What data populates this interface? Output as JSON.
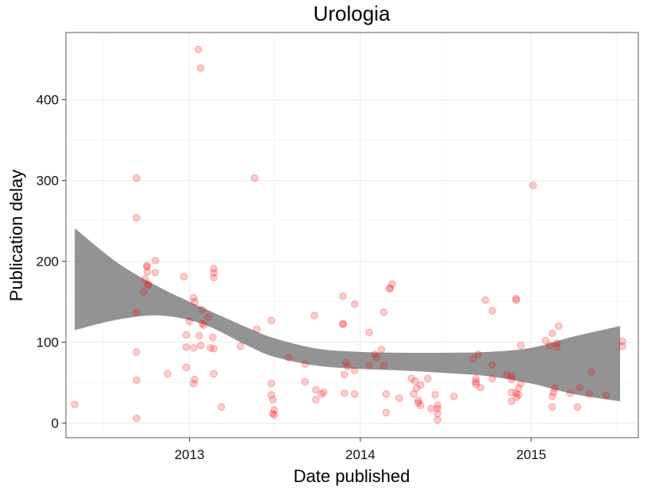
{
  "chart_data": {
    "type": "scatter",
    "title": "Urologia",
    "xlabel": "Date published",
    "ylabel": "Publication delay",
    "x_ticks": [
      "2013",
      "2014",
      "2015"
    ],
    "y_ticks": [
      "0",
      "100",
      "200",
      "300",
      "400"
    ],
    "xlim": [
      "2012-04-12",
      "2015-08-18"
    ],
    "ylim": [
      -18,
      483
    ],
    "grid": true,
    "colors": {
      "point": "#ff0000",
      "band": "#808080",
      "grid": "#ebebeb",
      "frame": "#7f7f7f"
    },
    "points": [
      {
        "x": "2012-05-01",
        "y": 23
      },
      {
        "x": "2012-09-10",
        "y": 303
      },
      {
        "x": "2012-09-10",
        "y": 254
      },
      {
        "x": "2012-09-10",
        "y": 137
      },
      {
        "x": "2012-09-10",
        "y": 88
      },
      {
        "x": "2012-09-10",
        "y": 53
      },
      {
        "x": "2012-09-10",
        "y": 6
      },
      {
        "x": "2012-09-25",
        "y": 162
      },
      {
        "x": "2012-09-28",
        "y": 178
      },
      {
        "x": "2012-10-02",
        "y": 195
      },
      {
        "x": "2012-10-02",
        "y": 193
      },
      {
        "x": "2012-10-03",
        "y": 187
      },
      {
        "x": "2012-10-05",
        "y": 172
      },
      {
        "x": "2012-10-05",
        "y": 170
      },
      {
        "x": "2012-10-20",
        "y": 201
      },
      {
        "x": "2012-10-20",
        "y": 186
      },
      {
        "x": "2012-11-15",
        "y": 61
      },
      {
        "x": "2012-12-20",
        "y": 181
      },
      {
        "x": "2012-12-25",
        "y": 109
      },
      {
        "x": "2012-12-25",
        "y": 94
      },
      {
        "x": "2012-12-25",
        "y": 69
      },
      {
        "x": "2013-01-01",
        "y": 126
      },
      {
        "x": "2013-01-10",
        "y": 155
      },
      {
        "x": "2013-01-12",
        "y": 150
      },
      {
        "x": "2013-01-10",
        "y": 93
      },
      {
        "x": "2013-01-10",
        "y": 49
      },
      {
        "x": "2013-01-12",
        "y": 54
      },
      {
        "x": "2013-01-20",
        "y": 462
      },
      {
        "x": "2013-01-25",
        "y": 439
      },
      {
        "x": "2013-01-22",
        "y": 108
      },
      {
        "x": "2013-01-25",
        "y": 96
      },
      {
        "x": "2013-01-28",
        "y": 123
      },
      {
        "x": "2013-01-28",
        "y": 140
      },
      {
        "x": "2013-02-01",
        "y": 121
      },
      {
        "x": "2013-02-10",
        "y": 131
      },
      {
        "x": "2013-02-15",
        "y": 93
      },
      {
        "x": "2013-02-22",
        "y": 191
      },
      {
        "x": "2013-02-22",
        "y": 186
      },
      {
        "x": "2013-02-22",
        "y": 180
      },
      {
        "x": "2013-02-20",
        "y": 106
      },
      {
        "x": "2013-02-22",
        "y": 92
      },
      {
        "x": "2013-02-22",
        "y": 61
      },
      {
        "x": "2013-03-10",
        "y": 20
      },
      {
        "x": "2013-04-20",
        "y": 95
      },
      {
        "x": "2013-05-20",
        "y": 303
      },
      {
        "x": "2013-05-25",
        "y": 116
      },
      {
        "x": "2013-06-25",
        "y": 127
      },
      {
        "x": "2013-06-25",
        "y": 49
      },
      {
        "x": "2013-06-25",
        "y": 35
      },
      {
        "x": "2013-06-28",
        "y": 29
      },
      {
        "x": "2013-06-28",
        "y": 12
      },
      {
        "x": "2013-07-01",
        "y": 10
      },
      {
        "x": "2013-07-01",
        "y": 16
      },
      {
        "x": "2013-08-01",
        "y": 81
      },
      {
        "x": "2013-09-05",
        "y": 73
      },
      {
        "x": "2013-09-05",
        "y": 51
      },
      {
        "x": "2013-09-25",
        "y": 133
      },
      {
        "x": "2013-09-28",
        "y": 41
      },
      {
        "x": "2013-09-28",
        "y": 29
      },
      {
        "x": "2013-10-10",
        "y": 36
      },
      {
        "x": "2013-10-15",
        "y": 38
      },
      {
        "x": "2013-11-25",
        "y": 157
      },
      {
        "x": "2013-11-25",
        "y": 123
      },
      {
        "x": "2013-11-25",
        "y": 122
      },
      {
        "x": "2013-11-28",
        "y": 60
      },
      {
        "x": "2013-11-28",
        "y": 37
      },
      {
        "x": "2013-12-01",
        "y": 75
      },
      {
        "x": "2013-12-05",
        "y": 70
      },
      {
        "x": "2013-12-20",
        "y": 147
      },
      {
        "x": "2013-12-20",
        "y": 65
      },
      {
        "x": "2013-12-20",
        "y": 36
      },
      {
        "x": "2014-01-20",
        "y": 112
      },
      {
        "x": "2014-01-20",
        "y": 71
      },
      {
        "x": "2014-02-01",
        "y": 85
      },
      {
        "x": "2014-02-05",
        "y": 81
      },
      {
        "x": "2014-02-15",
        "y": 91
      },
      {
        "x": "2014-02-20",
        "y": 137
      },
      {
        "x": "2014-02-20",
        "y": 71
      },
      {
        "x": "2014-02-25",
        "y": 36
      },
      {
        "x": "2014-02-25",
        "y": 13
      },
      {
        "x": "2014-03-05",
        "y": 167
      },
      {
        "x": "2014-03-05",
        "y": 166
      },
      {
        "x": "2014-03-10",
        "y": 172
      },
      {
        "x": "2014-03-25",
        "y": 31
      },
      {
        "x": "2014-04-20",
        "y": 55
      },
      {
        "x": "2014-04-25",
        "y": 36
      },
      {
        "x": "2014-04-28",
        "y": 52
      },
      {
        "x": "2014-05-01",
        "y": 43
      },
      {
        "x": "2014-05-05",
        "y": 28
      },
      {
        "x": "2014-05-05",
        "y": 25
      },
      {
        "x": "2014-05-10",
        "y": 47
      },
      {
        "x": "2014-05-10",
        "y": 22
      },
      {
        "x": "2014-05-25",
        "y": 55
      },
      {
        "x": "2014-06-01",
        "y": 18
      },
      {
        "x": "2014-06-10",
        "y": 35
      },
      {
        "x": "2014-06-15",
        "y": 18
      },
      {
        "x": "2014-06-15",
        "y": 12
      },
      {
        "x": "2014-06-15",
        "y": 4
      },
      {
        "x": "2014-06-15",
        "y": 22
      },
      {
        "x": "2014-07-20",
        "y": 33
      },
      {
        "x": "2014-08-30",
        "y": 79
      },
      {
        "x": "2014-09-05",
        "y": 55
      },
      {
        "x": "2014-09-05",
        "y": 51
      },
      {
        "x": "2014-09-05",
        "y": 48
      },
      {
        "x": "2014-09-10",
        "y": 85
      },
      {
        "x": "2014-09-15",
        "y": 44
      },
      {
        "x": "2014-09-25",
        "y": 152
      },
      {
        "x": "2014-10-10",
        "y": 139
      },
      {
        "x": "2014-10-10",
        "y": 72
      },
      {
        "x": "2014-10-10",
        "y": 55
      },
      {
        "x": "2014-11-10",
        "y": 60
      },
      {
        "x": "2014-11-20",
        "y": 58
      },
      {
        "x": "2014-11-20",
        "y": 54
      },
      {
        "x": "2014-11-20",
        "y": 38
      },
      {
        "x": "2014-11-20",
        "y": 27
      },
      {
        "x": "2014-11-30",
        "y": 154
      },
      {
        "x": "2014-11-30",
        "y": 152
      },
      {
        "x": "2014-11-30",
        "y": 37
      },
      {
        "x": "2014-12-01",
        "y": 32
      },
      {
        "x": "2014-12-05",
        "y": 43
      },
      {
        "x": "2014-12-05",
        "y": 35
      },
      {
        "x": "2014-12-10",
        "y": 49
      },
      {
        "x": "2014-12-10",
        "y": 96
      },
      {
        "x": "2015-01-05",
        "y": 294
      },
      {
        "x": "2015-02-01",
        "y": 102
      },
      {
        "x": "2015-02-10",
        "y": 96
      },
      {
        "x": "2015-02-15",
        "y": 111
      },
      {
        "x": "2015-02-15",
        "y": 33
      },
      {
        "x": "2015-02-15",
        "y": 20
      },
      {
        "x": "2015-02-18",
        "y": 38
      },
      {
        "x": "2015-02-20",
        "y": 43
      },
      {
        "x": "2015-02-25",
        "y": 99
      },
      {
        "x": "2015-02-25",
        "y": 94
      },
      {
        "x": "2015-03-01",
        "y": 120
      },
      {
        "x": "2015-03-25",
        "y": 37
      },
      {
        "x": "2015-04-10",
        "y": 20
      },
      {
        "x": "2015-04-15",
        "y": 44
      },
      {
        "x": "2015-05-05",
        "y": 36
      },
      {
        "x": "2015-05-10",
        "y": 63
      },
      {
        "x": "2015-06-10",
        "y": 34
      },
      {
        "x": "2015-07-15",
        "y": 101
      },
      {
        "x": "2015-07-15",
        "y": 95
      }
    ],
    "smooth_band": [
      {
        "x": "2012-05-01",
        "upper": 241,
        "lower": 115
      },
      {
        "x": "2012-08-01",
        "upper": 198,
        "lower": 128
      },
      {
        "x": "2012-11-01",
        "upper": 167,
        "lower": 133
      },
      {
        "x": "2013-02-01",
        "upper": 142,
        "lower": 122
      },
      {
        "x": "2013-05-01",
        "upper": 119,
        "lower": 97
      },
      {
        "x": "2013-07-01",
        "upper": 105,
        "lower": 82
      },
      {
        "x": "2013-10-01",
        "upper": 92,
        "lower": 71
      },
      {
        "x": "2014-01-01",
        "upper": 88,
        "lower": 67
      },
      {
        "x": "2014-04-01",
        "upper": 87,
        "lower": 65
      },
      {
        "x": "2014-07-01",
        "upper": 87,
        "lower": 62
      },
      {
        "x": "2014-10-01",
        "upper": 88,
        "lower": 58
      },
      {
        "x": "2015-01-01",
        "upper": 93,
        "lower": 49
      },
      {
        "x": "2015-04-01",
        "upper": 107,
        "lower": 36
      },
      {
        "x": "2015-07-10",
        "upper": 120,
        "lower": 27
      }
    ]
  }
}
